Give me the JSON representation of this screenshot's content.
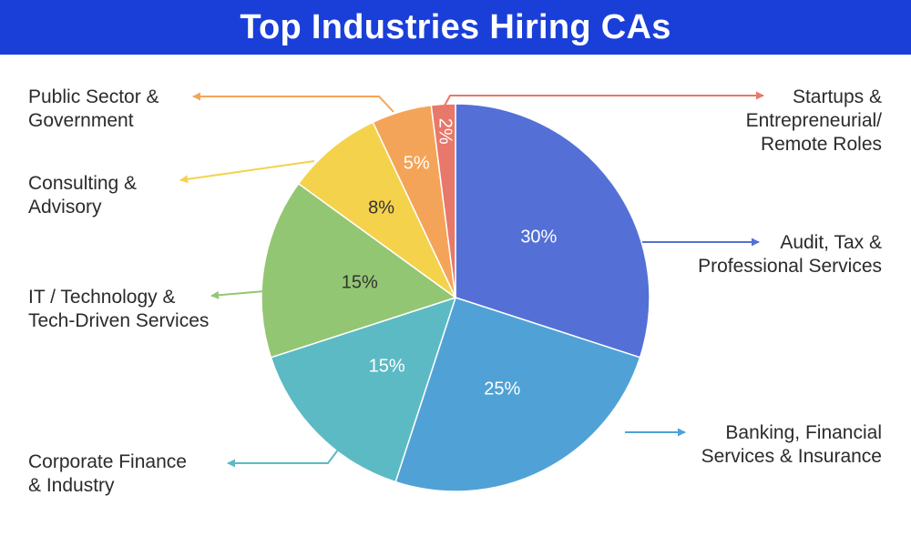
{
  "title": "Top Industries Hiring CAs",
  "colors": {
    "banner": "#1a3fd9"
  },
  "chart_data": {
    "type": "pie",
    "title": "Top Industries Hiring CAs",
    "slices": [
      {
        "label": [
          "Audit, Tax &",
          "Professional Services"
        ],
        "value": 30,
        "pct_label": "30%",
        "color": "#5470d6"
      },
      {
        "label": [
          "Banking, Financial",
          "Services & Insurance"
        ],
        "value": 25,
        "pct_label": "25%",
        "color": "#50a2d6"
      },
      {
        "label": [
          "Corporate Finance",
          "& Industry"
        ],
        "value": 15,
        "pct_label": "15%",
        "color": "#5cbac4"
      },
      {
        "label": [
          "IT / Technology &",
          "Tech-Driven Services"
        ],
        "value": 15,
        "pct_label": "15%",
        "color": "#93c672"
      },
      {
        "label": [
          "Consulting &",
          "Advisory"
        ],
        "value": 8,
        "pct_label": "8%",
        "color": "#f5d24b"
      },
      {
        "label": [
          "Public Sector &",
          "Government"
        ],
        "value": 5,
        "pct_label": "5%",
        "color": "#f4a458"
      },
      {
        "label": [
          "Startups &",
          "Entrepreneurial/",
          "Remote Roles"
        ],
        "value": 2,
        "pct_label": "2%",
        "color": "#e8786a"
      }
    ]
  }
}
